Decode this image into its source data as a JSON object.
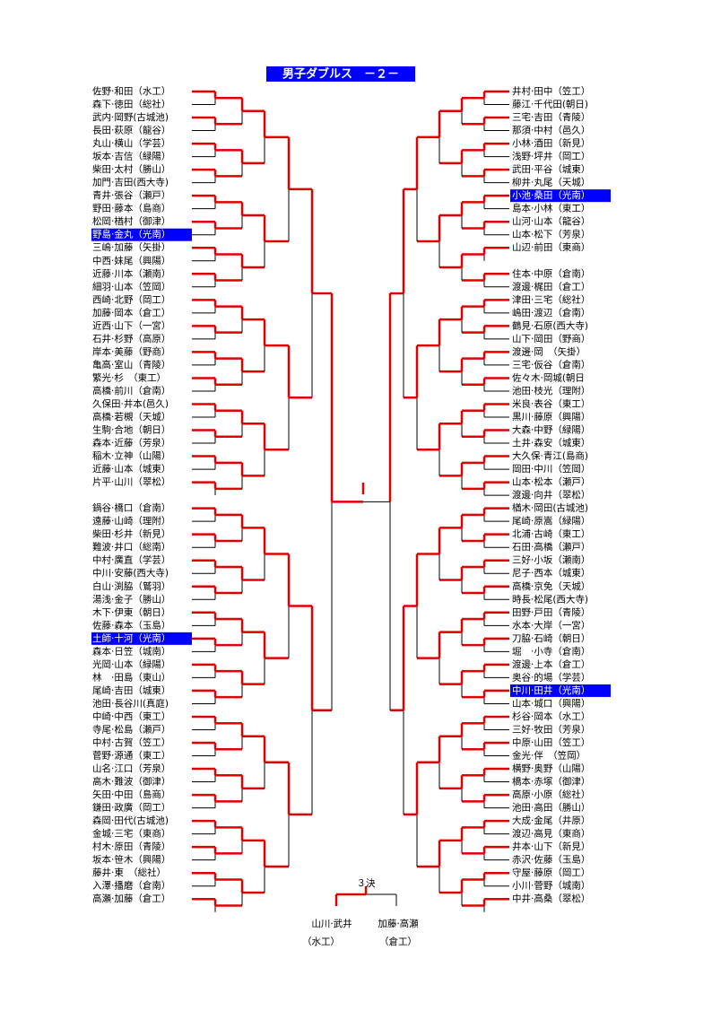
{
  "title": "男子ダブルス　－２－",
  "left": [
    "佐野·和田（水工）",
    "森下·徳田（総社）",
    "武内·岡野(古城池)",
    "長田·萩原（龍谷）",
    "丸山·横山（学芸）",
    "坂本·吉信（緑陽）",
    "柴田·太村（勝山）",
    "加門·吉田(西大寺)",
    "青井·張谷（瀬戸）",
    "野田·藤本（島商）",
    "松岡·楢村（御津）",
    "野島·金丸（光南）",
    "三嶋·加藤（矢掛）",
    "中西·妹尾（興陽）",
    "近藤·川本（瀬南）",
    "細羽·山本（笠岡）",
    "西崎·北野（岡工）",
    "加藤·岡本（倉工）",
    "近西·山下（一宮）",
    "石井·杉野（高原）",
    "岸本·美藤（野商）",
    "亀高·室山（青陵）",
    "繁光·杉　（東工）",
    "高橋·前川（倉南）",
    "久保田·井本(邑久)",
    "高橋·若槻（天城）",
    "生駒·合地（朝日）",
    "森本·近藤（芳泉）",
    "稲木·立神（山陽）",
    "近藤·山本（城東）",
    "片平·山川（翠松）",
    null,
    "鍋谷·橋口（倉南）",
    "遠藤·山崎（理附）",
    "柴田·杉井（新見）",
    "難波·井口（総南）",
    "中村·廣直（学芸）",
    "中川·安藤(西大寺)",
    "白山·渕脇（鷲羽）",
    "湯浅·金子（勝山）",
    "木下·伊東（朝日）",
    "佐藤·森本（玉島）",
    "土師·十河（光南）",
    "森本·日笠（城南）",
    "光岡·山本（緑陽）",
    "林　·田島（東山）",
    "尾崎·吉田（城東）",
    "池田·長谷川(真庭)",
    "中崎·中西（東工）",
    "寺尾·松島（瀬戸）",
    "中村·古賀（笠工）",
    "菅野·源通（東工）",
    "山名·江口（芳泉）",
    "高木·難波（御津）",
    "矢田·中田（島商）",
    "鎌田·政廣（岡工）",
    "森岡·田代(古城池)",
    "金城·三宅（東商）",
    "村木·原田（青陵）",
    "坂本·笹木（興陽）",
    "藤井·東　（総社）",
    "入澤·播磨（倉南）",
    "高瀬·加藤（倉工）",
    null
  ],
  "left_highlighted": [
    11,
    42
  ],
  "right": [
    "井村·田中（笠工）",
    "藤江·千代田(朝日)",
    "三宅·吉田（青陵）",
    "那須·中村（邑久）",
    "小林·酒田（新見）",
    "浅野·坪井（岡工）",
    "武田·平谷（城東）",
    "柳井·丸尾（天城）",
    "小池·桑田（光南）",
    "島本·小林（東工）",
    "山河·山本（龍谷）",
    "山本·松下（芳泉）",
    "山辺·前田（東商）",
    null,
    "住本·中原（倉南）",
    "渡邊·梶田（倉工）",
    "津田·三宅（総社）",
    "嶋田·渡辺（倉南）",
    "鶴見·石原(西大寺)",
    "山下·岡田（野商）",
    "渡邊·岡　（矢掛）",
    "三宅·仮谷（倉南）",
    "佐々木·岡城(朝日",
    "池田·枝光（理附）",
    "米良·表谷（東工）",
    "黒川·藤原（興陽）",
    "大森·中野（緑陽）",
    "土井·森安（城東）",
    "大久保·青江(島商)",
    "岡田·中川（笠岡）",
    "山本·松本（瀬戸）",
    "渡邊·向井（翠松）",
    "楢木·岡田(古城池)",
    "尾崎·原嵩（緑陽）",
    "北浦·古崎（東工）",
    "石田·高橋（瀬戸）",
    "三好·小坂（瀬南）",
    "尼子·西本（城東）",
    "高橋·京免（天城）",
    "時長·松尾(西大寺)",
    "田野·戸田（青陵）",
    "水本·大岸（一宮）",
    "刀脇·石崎（朝日）",
    "堀　·小寺（倉南）",
    "渡邊·上本（倉工）",
    "奥谷·的場（学芸）",
    "中川·田井（光南）",
    "山本·城口（興陽）",
    "杉谷·岡本（水工）",
    "三好·牧田（芳泉）",
    "中原·山田（笠工）",
    "金光·伴　（笠岡）",
    "横野·奥野（山陽）",
    "橋本·赤塚（御津）",
    "高原·小原（総社）",
    "池田·高田（勝山）",
    "大成·金尾（井原）",
    "渡辺·高見（東商）",
    "井本·山下（新見）",
    "赤沢·佐藤（玉島）",
    "守屋·藤原（岡工）",
    "小川·菅野（城南）",
    "中井·高桑（翠松）",
    null
  ],
  "right_highlighted": [
    8,
    46
  ],
  "third_place": {
    "label": "３決",
    "left": {
      "names": "山川·武井",
      "school": "（水工）"
    },
    "right": {
      "names": "加藤·高瀬",
      "school": "（倉工）"
    }
  }
}
